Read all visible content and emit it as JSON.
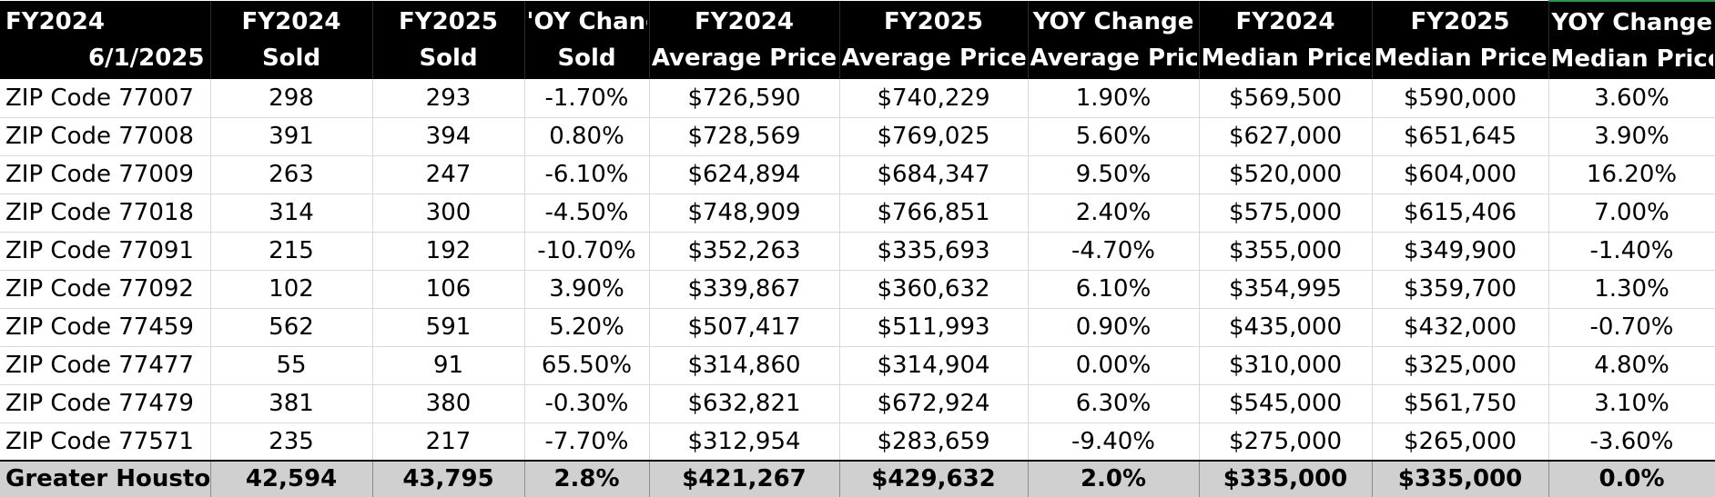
{
  "header": {
    "col0": {
      "line1": "FY2024",
      "line2": "6/1/2025"
    },
    "col1": {
      "line1": "FY2024",
      "line2": "Sold"
    },
    "col2": {
      "line1": "FY2025",
      "line2": "Sold"
    },
    "col3": {
      "line1": "'OY Chang",
      "line2": "Sold"
    },
    "col4": {
      "line1": "FY2024",
      "line2": "Average Price"
    },
    "col5": {
      "line1": "FY2025",
      "line2": "Average Price"
    },
    "col6": {
      "line1": "YOY Change",
      "line2": "Average Price"
    },
    "col7": {
      "line1": "FY2024",
      "line2": "Median Price"
    },
    "col8": {
      "line1": "FY2025",
      "line2": "Median Price"
    },
    "col9": {
      "line1": "YOY Change",
      "line2": "Median Price"
    }
  },
  "rows": [
    [
      "ZIP Code 77007",
      "298",
      "293",
      "-1.70%",
      "$726,590",
      "$740,229",
      "1.90%",
      "$569,500",
      "$590,000",
      "3.60%"
    ],
    [
      "ZIP Code 77008",
      "391",
      "394",
      "0.80%",
      "$728,569",
      "$769,025",
      "5.60%",
      "$627,000",
      "$651,645",
      "3.90%"
    ],
    [
      "ZIP Code 77009",
      "263",
      "247",
      "-6.10%",
      "$624,894",
      "$684,347",
      "9.50%",
      "$520,000",
      "$604,000",
      "16.20%"
    ],
    [
      "ZIP Code 77018",
      "314",
      "300",
      "-4.50%",
      "$748,909",
      "$766,851",
      "2.40%",
      "$575,000",
      "$615,406",
      "7.00%"
    ],
    [
      "ZIP Code 77091",
      "215",
      "192",
      "-10.70%",
      "$352,263",
      "$335,693",
      "-4.70%",
      "$355,000",
      "$349,900",
      "-1.40%"
    ],
    [
      "ZIP Code 77092",
      "102",
      "106",
      "3.90%",
      "$339,867",
      "$360,632",
      "6.10%",
      "$354,995",
      "$359,700",
      "1.30%"
    ],
    [
      "ZIP Code 77459",
      "562",
      "591",
      "5.20%",
      "$507,417",
      "$511,993",
      "0.90%",
      "$435,000",
      "$432,000",
      "-0.70%"
    ],
    [
      "ZIP Code 77477",
      "55",
      "91",
      "65.50%",
      "$314,860",
      "$314,904",
      "0.00%",
      "$310,000",
      "$325,000",
      "4.80%"
    ],
    [
      "ZIP Code 77479",
      "381",
      "380",
      "-0.30%",
      "$632,821",
      "$672,924",
      "6.30%",
      "$545,000",
      "$561,750",
      "3.10%"
    ],
    [
      "ZIP Code 77571",
      "235",
      "217",
      "-7.70%",
      "$312,954",
      "$283,659",
      "-9.40%",
      "$275,000",
      "$265,000",
      "-3.60%"
    ]
  ],
  "total": [
    "Greater Houston",
    "42,594",
    "43,795",
    "2.8%",
    "$421,267",
    "$429,632",
    "2.0%",
    "$335,000",
    "$335,000",
    "0.0%"
  ],
  "colors": {
    "header_background": "#000000",
    "header_text": "#ffffff",
    "total_background": "#d0d0d0",
    "gridline": "#d9d9d9",
    "accent_green": "#1f9d4a"
  }
}
